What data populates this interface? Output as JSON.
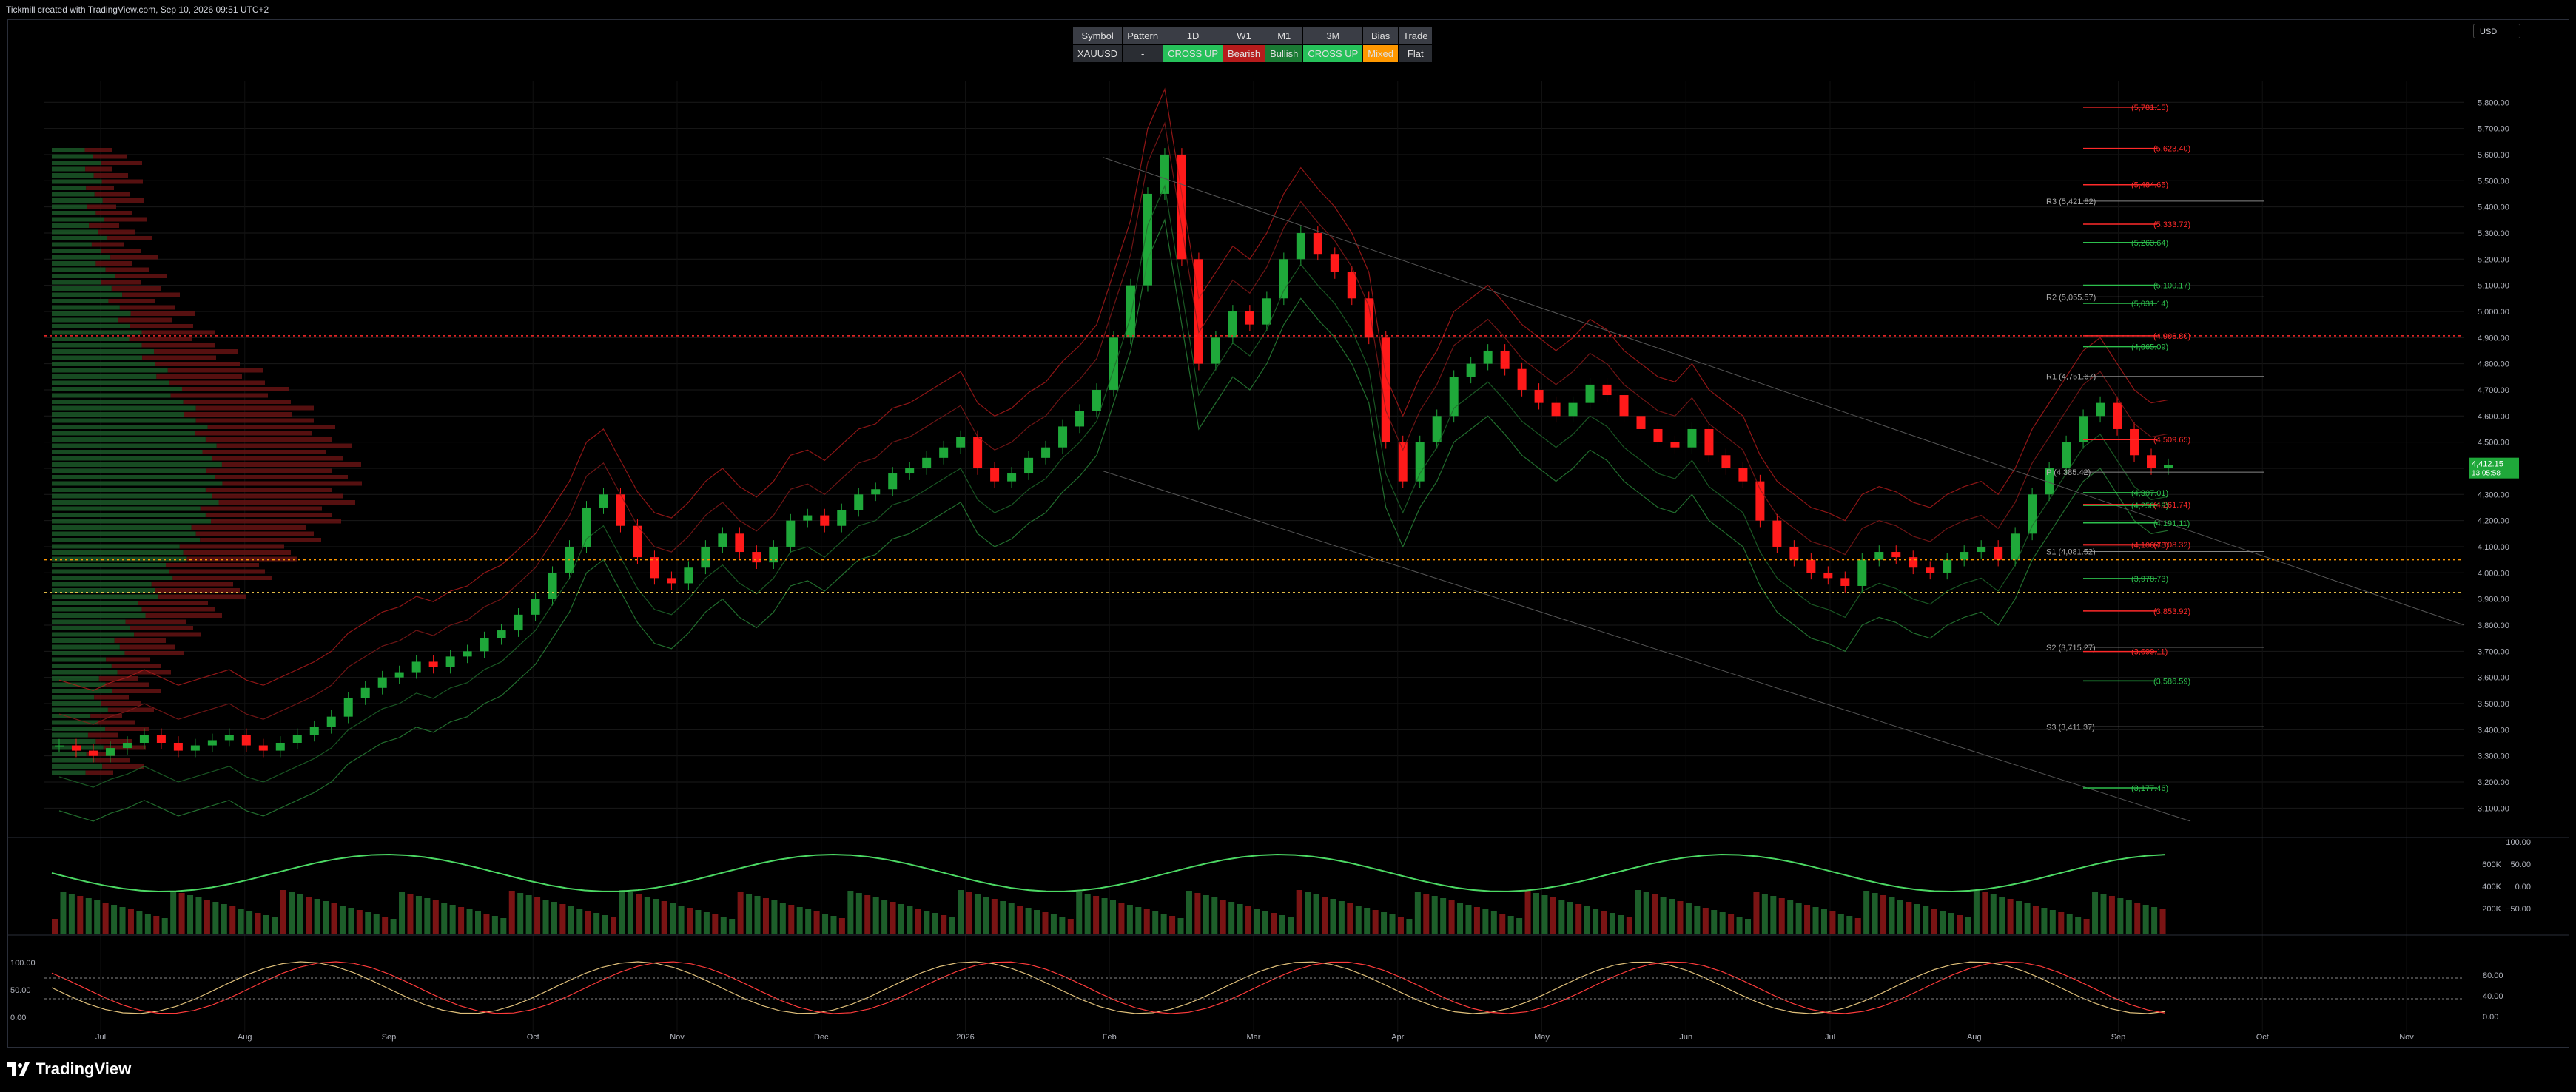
{
  "header": {
    "caption": "Tickmill created with TradingView.com, Sep 10, 2026 09:51 UTC+2"
  },
  "info_table": {
    "headers": [
      "Symbol",
      "Pattern",
      "1D",
      "W1",
      "M1",
      "3M",
      "Bias",
      "Trade"
    ],
    "values": [
      "XAUUSD",
      "-",
      "CROSS UP",
      "Bearish",
      "Bullish",
      "CROSS UP",
      "Mixed",
      "Flat"
    ],
    "value_colors": [
      "#2a2d33",
      "#2a2d33",
      "#26c15a",
      "#b71c1c",
      "#1b7a34",
      "#26c15a",
      "#ff9800",
      "#2a2d33"
    ]
  },
  "currency_selector": {
    "label": "USD"
  },
  "brand": {
    "name": "TradingView"
  },
  "colors": {
    "bull": "#1fa83a",
    "bear": "#ff1a1a",
    "grid": "#1a1a1a",
    "axis_text": "#b2b5be"
  },
  "chart_data": {
    "type": "candlestick",
    "symbol": "XAUUSD",
    "price_axis": {
      "ticks": [
        "5,800.00",
        "5,700.00",
        "5,600.00",
        "5,500.00",
        "5,400.00",
        "5,300.00",
        "5,200.00",
        "5,100.00",
        "5,000.00",
        "4,900.00",
        "4,800.00",
        "4,700.00",
        "4,600.00",
        "4,500.00",
        "4,400.00",
        "4,300.00",
        "4,200.00",
        "4,100.00",
        "4,000.00",
        "3,900.00",
        "3,800.00",
        "3,700.00",
        "3,600.00",
        "3,500.00",
        "3,400.00",
        "3,300.00",
        "3,200.00",
        "3,100.00"
      ],
      "range": [
        3050,
        5880
      ],
      "last_price": "4,412.15",
      "countdown": "13:05:58"
    },
    "time_axis": {
      "labels": [
        "Jul",
        "Aug",
        "Sep",
        "Oct",
        "Nov",
        "Dec",
        "2026",
        "Feb",
        "Mar",
        "Apr",
        "May",
        "Jun",
        "Jul",
        "Aug",
        "Sep",
        "Oct",
        "Nov"
      ]
    },
    "closes": [
      3340,
      3320,
      3300,
      3330,
      3350,
      3380,
      3350,
      3320,
      3340,
      3360,
      3380,
      3340,
      3320,
      3350,
      3380,
      3410,
      3450,
      3520,
      3560,
      3600,
      3620,
      3660,
      3640,
      3680,
      3700,
      3750,
      3780,
      3840,
      3900,
      4000,
      4100,
      4250,
      4300,
      4180,
      4060,
      3980,
      3960,
      4020,
      4100,
      4150,
      4080,
      4040,
      4100,
      4200,
      4220,
      4180,
      4240,
      4300,
      4320,
      4380,
      4400,
      4440,
      4480,
      4520,
      4400,
      4350,
      4380,
      4440,
      4480,
      4560,
      4620,
      4700,
      4900,
      5100,
      5450,
      5600,
      5200,
      4800,
      4900,
      5000,
      4950,
      5050,
      5200,
      5300,
      5220,
      5150,
      5050,
      4900,
      4500,
      4350,
      4500,
      4600,
      4750,
      4800,
      4850,
      4780,
      4700,
      4650,
      4600,
      4650,
      4720,
      4680,
      4600,
      4550,
      4500,
      4480,
      4550,
      4450,
      4400,
      4350,
      4200,
      4100,
      4050,
      4000,
      3980,
      3950,
      4050,
      4080,
      4060,
      4020,
      4000,
      4050,
      4080,
      4100,
      4050,
      4150,
      4300,
      4400,
      4500,
      4600,
      4650,
      4550,
      4450,
      4400,
      4412
    ],
    "indicators": {
      "pivots": [
        {
          "label": "R3 (5,421.82)",
          "price": 5421.82,
          "color": "#888"
        },
        {
          "label": "R2 (5,055.57)",
          "price": 5055.57,
          "color": "#888"
        },
        {
          "label": "R1 (4,751.67)",
          "price": 4751.67,
          "color": "#888"
        },
        {
          "label": "P (4,385.42)",
          "price": 4385.42,
          "color": "#888"
        },
        {
          "label": "S1 (4,081.52)",
          "price": 4081.52,
          "color": "#888"
        },
        {
          "label": "S2 (3,715.27)",
          "price": 3715.27,
          "color": "#888"
        },
        {
          "label": "S3 (3,411.37)",
          "price": 3411.37,
          "color": "#888"
        }
      ],
      "targets": [
        {
          "label": "(5,781.15)",
          "price": 5781.15,
          "color": "#ff2a2a"
        },
        {
          "label": "(5,623.40)",
          "price": 5623.4,
          "color": "#ff2a2a"
        },
        {
          "label": "(5,484.65)",
          "price": 5484.65,
          "color": "#ff2a2a"
        },
        {
          "label": "(5,333.72)",
          "price": 5333.72,
          "color": "#ff2a2a"
        },
        {
          "label": "(5,263.64)",
          "price": 5263.64,
          "color": "#2dbf4d"
        },
        {
          "label": "(5,100.17)",
          "price": 5100.17,
          "color": "#2dbf4d"
        },
        {
          "label": "(5,031.14)",
          "price": 5031.14,
          "color": "#2dbf4d"
        },
        {
          "label": "(4,906.80)",
          "price": 4906.8,
          "color": "#ff2a2a"
        },
        {
          "label": "(4,865.09)",
          "price": 4865.09,
          "color": "#2dbf4d"
        },
        {
          "label": "(4,509.65)",
          "price": 4509.65,
          "color": "#ff2a2a"
        },
        {
          "label": "(4,307.01)",
          "price": 4307.01,
          "color": "#2dbf4d"
        },
        {
          "label": "(4,261.74)",
          "price": 4261.74,
          "color": "#ff2a2a"
        },
        {
          "label": "(4,258.19)",
          "price": 4258.19,
          "color": "#2dbf4d"
        },
        {
          "label": "(4,191.11)",
          "price": 4191.11,
          "color": "#2dbf4d"
        },
        {
          "label": "(4,106.78)",
          "price": 4106.78,
          "color": "#ff2a2a"
        },
        {
          "label": "(4,108.32)",
          "price": 4108.32,
          "color": "#ff2a2a"
        },
        {
          "label": "(3,978.73)",
          "price": 3978.73,
          "color": "#2dbf4d"
        },
        {
          "label": "(3,853.92)",
          "price": 3853.92,
          "color": "#ff2a2a"
        },
        {
          "label": "(3,699.11)",
          "price": 3699.11,
          "color": "#ff2a2a"
        },
        {
          "label": "(3,586.59)",
          "price": 3586.59,
          "color": "#2dbf4d"
        },
        {
          "label": "(3,177.46)",
          "price": 3177.46,
          "color": "#2dbf4d"
        }
      ],
      "horizontal_levels": [
        {
          "price": 4906.8,
          "color": "#ff2a2a",
          "style": "dotted"
        },
        {
          "price": 4050,
          "color": "#ff9800",
          "style": "dotted"
        },
        {
          "price": 3925,
          "color": "#ffd54f",
          "style": "dotted"
        }
      ]
    },
    "volume_panel": {
      "ticks": [
        "600K",
        "400K",
        "200K"
      ],
      "osc_ticks": [
        "100.00",
        "50.00",
        "0.00",
        "−50.00"
      ]
    },
    "stoch_panel": {
      "ticks_left": [
        "100.00",
        "50.00",
        "0.00"
      ],
      "ticks_right": [
        "80.00",
        "40.00",
        "0.00"
      ]
    }
  }
}
